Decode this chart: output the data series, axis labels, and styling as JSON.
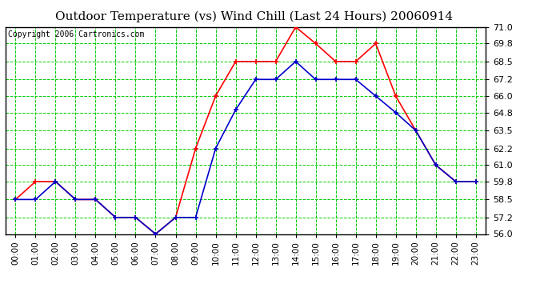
{
  "title": "Outdoor Temperature (vs) Wind Chill (Last 24 Hours) 20060914",
  "copyright": "Copyright 2006 Cartronics.com",
  "hours": [
    "00:00",
    "01:00",
    "02:00",
    "03:00",
    "04:00",
    "05:00",
    "06:00",
    "07:00",
    "08:00",
    "09:00",
    "10:00",
    "11:00",
    "12:00",
    "13:00",
    "14:00",
    "15:00",
    "16:00",
    "17:00",
    "18:00",
    "19:00",
    "20:00",
    "21:00",
    "22:00",
    "23:00"
  ],
  "temp": [
    58.5,
    59.8,
    59.8,
    58.5,
    58.5,
    57.2,
    57.2,
    56.0,
    57.2,
    62.2,
    66.0,
    68.5,
    68.5,
    68.5,
    71.0,
    69.8,
    68.5,
    68.5,
    69.8,
    66.0,
    63.5,
    61.0,
    59.8,
    59.8
  ],
  "windchill": [
    58.5,
    58.5,
    59.8,
    58.5,
    58.5,
    57.2,
    57.2,
    56.0,
    57.2,
    57.2,
    62.2,
    65.0,
    67.2,
    67.2,
    68.5,
    67.2,
    67.2,
    67.2,
    66.0,
    64.8,
    63.5,
    61.0,
    59.8,
    59.8
  ],
  "temp_color": "#ff0000",
  "windchill_color": "#0000cc",
  "bg_color": "#ffffff",
  "plot_bg_color": "#ffffff",
  "grid_color": "#00cc00",
  "ylim": [
    56.0,
    71.0
  ],
  "yticks": [
    56.0,
    57.2,
    58.5,
    59.8,
    61.0,
    62.2,
    63.5,
    64.8,
    66.0,
    67.2,
    68.5,
    69.8,
    71.0
  ],
  "title_fontsize": 11,
  "copyright_fontsize": 7,
  "marker": "+",
  "marker_size": 5,
  "linewidth": 1.2
}
